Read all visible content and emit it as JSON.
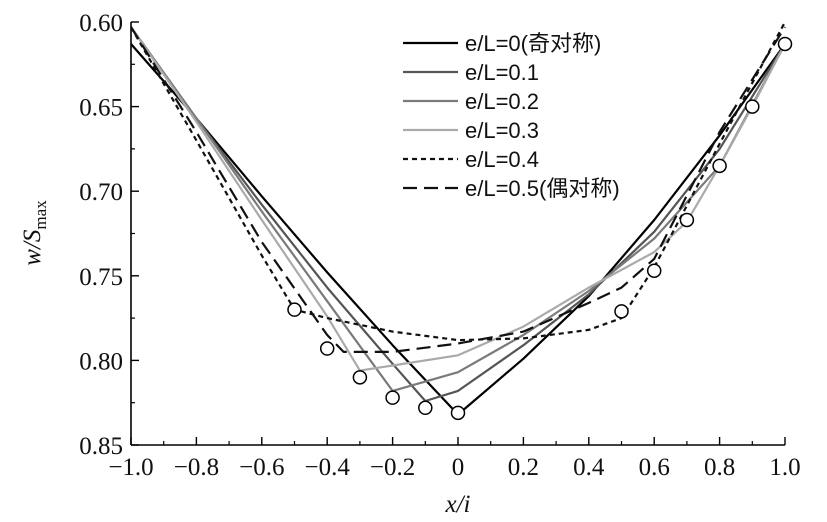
{
  "chart_data": {
    "type": "line",
    "xlabel": "x/i",
    "ylabel": "w/S",
    "ylabel_sub": "max",
    "xlim": [
      -1.0,
      1.0
    ],
    "ylim": [
      0.6,
      0.85
    ],
    "y_inverted": true,
    "grid": false,
    "legend_position": "top-right",
    "x_ticks": [
      -1.0,
      -0.8,
      -0.6,
      -0.4,
      -0.2,
      0,
      0.2,
      0.4,
      0.6,
      0.8,
      1.0
    ],
    "x_tick_labels": [
      "−1.0",
      "−0.8",
      "−0.6",
      "−0.4",
      "−0.2",
      "0",
      "0.2",
      "0.4",
      "0.6",
      "0.8",
      "1.0"
    ],
    "y_ticks": [
      0.6,
      0.65,
      0.7,
      0.75,
      0.8,
      0.85
    ],
    "y_tick_labels": [
      "0.60",
      "0.65",
      "0.70",
      "0.75",
      "0.80",
      "0.85"
    ],
    "series": [
      {
        "name": "e/L=0(奇对称)",
        "color": "#000000",
        "dash": "solid",
        "x": [
          -1.0,
          -0.8,
          -0.6,
          -0.4,
          -0.2,
          0,
          0.2,
          0.4,
          0.6,
          0.8,
          1.0
        ],
        "y": [
          0.613,
          0.657,
          0.703,
          0.748,
          0.791,
          0.832,
          0.799,
          0.762,
          0.717,
          0.667,
          0.613
        ]
      },
      {
        "name": "e/L=0.1",
        "color": "#555555",
        "dash": "solid",
        "x": [
          -1.0,
          -0.8,
          -0.6,
          -0.4,
          -0.2,
          -0.1,
          0,
          0.2,
          0.4,
          0.6,
          0.8,
          1.0
        ],
        "y": [
          0.603,
          0.657,
          0.708,
          0.757,
          0.802,
          0.824,
          0.818,
          0.791,
          0.761,
          0.724,
          0.675,
          0.613
        ]
      },
      {
        "name": "e/L=0.2",
        "color": "#7a7a7a",
        "dash": "solid",
        "x": [
          -1.0,
          -0.8,
          -0.6,
          -0.4,
          -0.2,
          0,
          0.2,
          0.4,
          0.6,
          0.8,
          1.0
        ],
        "y": [
          0.603,
          0.657,
          0.712,
          0.765,
          0.818,
          0.807,
          0.785,
          0.759,
          0.728,
          0.685,
          0.613
        ]
      },
      {
        "name": "e/L=0.3",
        "color": "#aaaaaa",
        "dash": "solid",
        "x": [
          -1.0,
          -0.8,
          -0.6,
          -0.4,
          -0.3,
          -0.2,
          0,
          0.2,
          0.4,
          0.6,
          0.7,
          0.8,
          0.9,
          1.0
        ],
        "y": [
          0.603,
          0.659,
          0.717,
          0.774,
          0.806,
          0.803,
          0.797,
          0.78,
          0.757,
          0.736,
          0.718,
          0.685,
          0.65,
          0.613
        ]
      },
      {
        "name": "e/L=0.4",
        "color": "#111111",
        "dash": "dotted",
        "x": [
          -1.0,
          -0.8,
          -0.6,
          -0.5,
          -0.4,
          -0.2,
          0,
          0.2,
          0.4,
          0.5,
          0.55,
          0.6,
          0.8,
          1.0
        ],
        "y": [
          0.603,
          0.67,
          0.738,
          0.77,
          0.775,
          0.783,
          0.788,
          0.787,
          0.782,
          0.775,
          0.76,
          0.745,
          0.672,
          0.6
        ]
      },
      {
        "name": "e/L=0.5(偶对称)",
        "color": "#111111",
        "dash": "dashed",
        "x": [
          -1.0,
          -0.8,
          -0.6,
          -0.4,
          -0.35,
          -0.2,
          0,
          0.2,
          0.4,
          0.5,
          0.6,
          0.8,
          1.0
        ],
        "y": [
          0.603,
          0.665,
          0.73,
          0.785,
          0.795,
          0.795,
          0.79,
          0.783,
          0.766,
          0.757,
          0.74,
          0.665,
          0.603
        ]
      }
    ],
    "markers": {
      "x": [
        -0.5,
        -0.4,
        -0.3,
        -0.2,
        -0.1,
        0,
        0.5,
        0.6,
        0.7,
        0.8,
        0.9,
        1.0
      ],
      "y": [
        0.77,
        0.793,
        0.81,
        0.822,
        0.828,
        0.831,
        0.771,
        0.747,
        0.717,
        0.685,
        0.65,
        0.613
      ]
    }
  }
}
